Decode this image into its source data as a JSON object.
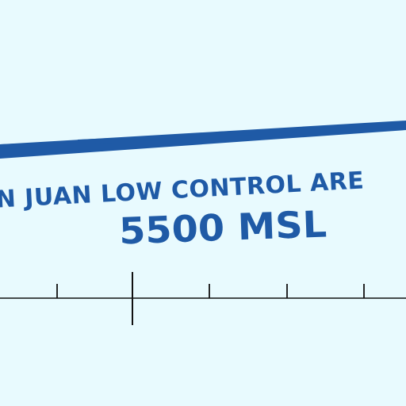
{
  "map": {
    "area_name": "N JUAN LOW CONTROL ARE",
    "altitude": "5500 MSL",
    "colors": {
      "background": "#e8fafe",
      "airspace_boundary": "#1f5aa6",
      "text": "#1f5aa6",
      "scale_line": "#111111"
    }
  }
}
